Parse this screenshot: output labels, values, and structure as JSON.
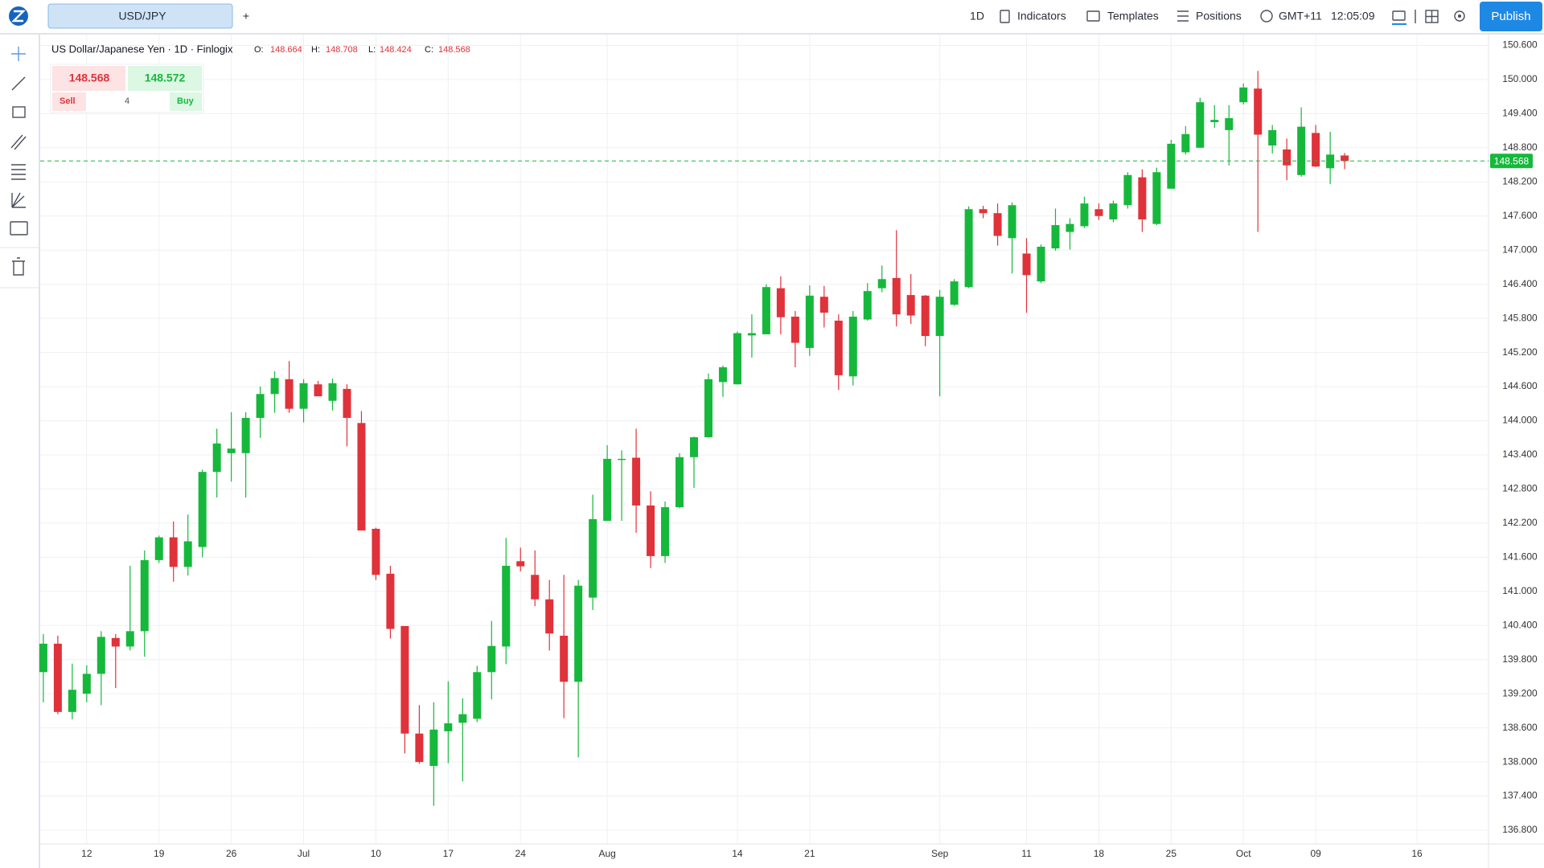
{
  "toolbar": {
    "symbol_tab": "USD/JPY",
    "add_tab": "+",
    "interval": "1D",
    "indicators": "Indicators",
    "templates": "Templates",
    "positions": "Positions",
    "timezone": "GMT+11",
    "clock": "12:05:09",
    "publish": "Publish"
  },
  "legend": {
    "title": "US Dollar/Japanese Yen · 1D · Finlogix",
    "open_label": "O:",
    "high_label": "H:",
    "low_label": "L:",
    "close_label": "C:"
  },
  "trade_panel": {
    "sell_price": "148.568",
    "buy_price": "148.572",
    "sell": "Sell",
    "buy": "Buy",
    "quantity": "4"
  },
  "chart_data": {
    "type": "candlestick",
    "up_color": "#16b83c",
    "down_color": "#e0323a",
    "grid": true,
    "x": [
      "06-07",
      "06-08",
      "06-09",
      "06-12",
      "06-13",
      "06-14",
      "06-15",
      "06-16",
      "06-19",
      "06-20",
      "06-21",
      "06-22",
      "06-23",
      "06-26",
      "06-27",
      "06-28",
      "06-29",
      "06-30",
      "07-03",
      "07-04",
      "07-05",
      "07-06",
      "07-07",
      "07-10",
      "07-11",
      "07-12",
      "07-13",
      "07-14",
      "07-17",
      "07-18",
      "07-19",
      "07-20",
      "07-21",
      "07-24",
      "07-25",
      "07-26",
      "07-27",
      "07-28",
      "07-31",
      "08-01",
      "08-02",
      "08-03",
      "08-04",
      "08-07",
      "08-08",
      "08-09",
      "08-10",
      "08-11",
      "08-14",
      "08-15",
      "08-16",
      "08-17",
      "08-18",
      "08-21",
      "08-22",
      "08-23",
      "08-24",
      "08-25",
      "08-28",
      "08-29",
      "08-30",
      "08-31",
      "09-01",
      "09-04",
      "09-05",
      "09-06",
      "09-07",
      "09-08",
      "09-11",
      "09-12",
      "09-13",
      "09-14",
      "09-15",
      "09-18",
      "09-19",
      "09-20",
      "09-21",
      "09-22",
      "09-25",
      "09-26",
      "09-27",
      "09-28",
      "09-29",
      "10-02",
      "10-03",
      "10-04",
      "10-05",
      "10-06",
      "10-09",
      "10-10",
      "10-11"
    ],
    "open": [
      139.58,
      140.08,
      138.88,
      139.2,
      139.55,
      140.18,
      140.03,
      140.3,
      141.55,
      141.95,
      141.43,
      141.78,
      143.1,
      143.43,
      143.43,
      144.05,
      144.47,
      144.73,
      144.21,
      144.64,
      144.35,
      144.56,
      143.96,
      142.1,
      141.31,
      140.39,
      138.5,
      137.93,
      138.54,
      138.69,
      138.76,
      139.58,
      140.03,
      141.53,
      141.29,
      140.86,
      140.22,
      139.41,
      140.89,
      142.24,
      143.31,
      143.35,
      142.51,
      141.62,
      142.48,
      143.36,
      143.71,
      144.68,
      144.64,
      145.5,
      145.52,
      146.33,
      145.83,
      145.28,
      146.18,
      145.76,
      144.78,
      145.78,
      146.33,
      146.51,
      146.21,
      146.2,
      145.49,
      146.04,
      146.35,
      147.72,
      147.65,
      147.21,
      146.94,
      146.45,
      147.03,
      147.32,
      147.42,
      147.72,
      147.54,
      147.79,
      148.28,
      147.46,
      148.08,
      148.72,
      148.8,
      149.25,
      149.11,
      149.6,
      149.84,
      148.84,
      148.77,
      148.32,
      149.06,
      148.44,
      148.664
    ],
    "high": [
      140.25,
      140.22,
      139.73,
      139.7,
      140.3,
      140.25,
      141.45,
      141.72,
      141.98,
      142.23,
      142.35,
      143.14,
      143.86,
      144.15,
      144.15,
      144.6,
      144.87,
      145.05,
      144.73,
      144.7,
      144.74,
      144.64,
      144.17,
      142.12,
      141.45,
      140.39,
      139.0,
      139.05,
      139.42,
      139.12,
      139.69,
      140.48,
      141.94,
      141.77,
      141.72,
      141.2,
      141.29,
      141.2,
      142.7,
      143.57,
      143.48,
      143.86,
      142.76,
      142.58,
      143.43,
      143.72,
      144.83,
      144.97,
      145.57,
      145.87,
      146.4,
      146.54,
      145.93,
      146.38,
      146.37,
      145.87,
      145.93,
      146.42,
      146.73,
      147.35,
      146.58,
      146.21,
      146.3,
      146.49,
      147.77,
      147.78,
      147.82,
      147.84,
      147.21,
      147.1,
      147.73,
      147.56,
      147.94,
      147.82,
      147.87,
      148.37,
      148.42,
      148.45,
      148.94,
      149.18,
      149.68,
      149.55,
      149.55,
      149.93,
      150.15,
      149.2,
      148.96,
      149.51,
      149.2,
      149.08,
      148.708
    ],
    "low": [
      139.05,
      138.84,
      138.75,
      139.05,
      139.0,
      139.3,
      139.96,
      139.85,
      141.5,
      141.17,
      141.28,
      141.6,
      142.65,
      142.93,
      142.65,
      143.7,
      144.14,
      144.14,
      143.97,
      144.43,
      144.18,
      143.55,
      142.07,
      141.2,
      140.17,
      138.15,
      137.97,
      137.23,
      137.98,
      137.66,
      138.7,
      139.1,
      139.72,
      141.35,
      140.74,
      139.96,
      138.77,
      138.08,
      140.67,
      142.24,
      142.24,
      142.03,
      141.41,
      141.5,
      142.46,
      142.82,
      143.7,
      144.42,
      144.64,
      145.11,
      145.52,
      145.52,
      144.94,
      145.14,
      145.64,
      144.54,
      144.62,
      145.76,
      146.26,
      145.66,
      145.7,
      145.31,
      144.43,
      146.02,
      146.33,
      147.56,
      147.08,
      146.59,
      145.9,
      146.42,
      146.99,
      147.01,
      147.39,
      147.53,
      147.49,
      147.73,
      147.32,
      147.44,
      148.08,
      148.68,
      148.8,
      149.15,
      148.49,
      149.56,
      147.32,
      148.7,
      148.23,
      148.29,
      148.46,
      148.16,
      148.424
    ],
    "close": [
      140.08,
      138.88,
      139.27,
      139.55,
      140.2,
      140.03,
      140.3,
      141.55,
      141.95,
      141.43,
      141.88,
      143.1,
      143.6,
      143.51,
      144.05,
      144.47,
      144.75,
      144.21,
      144.66,
      144.43,
      144.66,
      144.05,
      142.07,
      141.29,
      140.34,
      138.5,
      138.0,
      138.57,
      138.68,
      138.84,
      139.58,
      140.04,
      141.45,
      141.44,
      140.86,
      140.26,
      139.41,
      141.1,
      142.27,
      143.33,
      143.33,
      142.51,
      141.62,
      142.48,
      143.36,
      143.71,
      144.73,
      144.94,
      145.54,
      145.54,
      146.35,
      145.82,
      145.37,
      146.2,
      145.9,
      144.8,
      145.83,
      146.28,
      146.49,
      145.87,
      145.85,
      145.49,
      146.18,
      146.45,
      147.72,
      147.65,
      147.25,
      147.79,
      146.56,
      147.06,
      147.44,
      147.46,
      147.82,
      147.6,
      147.82,
      148.32,
      147.54,
      148.37,
      148.87,
      149.04,
      149.6,
      149.29,
      149.32,
      149.86,
      149.03,
      149.11,
      148.49,
      149.17,
      148.47,
      148.68,
      148.568
    ],
    "ylim": [
      136.56,
      150.79
    ],
    "yticks": [
      {
        "value": 150.6,
        "label": "150.600"
      },
      {
        "value": 150.0,
        "label": "150.000"
      },
      {
        "value": 149.4,
        "label": "149.400"
      },
      {
        "value": 148.8,
        "label": "148.800"
      },
      {
        "value": 148.2,
        "label": "148.200"
      },
      {
        "value": 147.6,
        "label": "147.600"
      },
      {
        "value": 147.0,
        "label": "147.000"
      },
      {
        "value": 146.4,
        "label": "146.400"
      },
      {
        "value": 145.8,
        "label": "145.800"
      },
      {
        "value": 145.2,
        "label": "145.200"
      },
      {
        "value": 144.6,
        "label": "144.600"
      },
      {
        "value": 144.0,
        "label": "144.000"
      },
      {
        "value": 143.4,
        "label": "143.400"
      },
      {
        "value": 142.8,
        "label": "142.800"
      },
      {
        "value": 142.2,
        "label": "142.200"
      },
      {
        "value": 141.6,
        "label": "141.600"
      },
      {
        "value": 141.0,
        "label": "141.000"
      },
      {
        "value": 140.4,
        "label": "140.400"
      },
      {
        "value": 139.8,
        "label": "139.800"
      },
      {
        "value": 139.2,
        "label": "139.200"
      },
      {
        "value": 138.6,
        "label": "138.600"
      },
      {
        "value": 138.0,
        "label": "138.000"
      },
      {
        "value": 137.4,
        "label": "137.400"
      },
      {
        "value": 136.8,
        "label": "136.800"
      }
    ],
    "xticks": [
      {
        "value": "06-12",
        "label": "12"
      },
      {
        "value": "06-19",
        "label": "19"
      },
      {
        "value": "06-26",
        "label": "26"
      },
      {
        "value": "07-03",
        "label": "Jul"
      },
      {
        "value": "07-10",
        "label": "10"
      },
      {
        "value": "07-17",
        "label": "17"
      },
      {
        "value": "07-24",
        "label": "24"
      },
      {
        "value": "08-01",
        "label": "Aug"
      },
      {
        "value": "08-14",
        "label": "14"
      },
      {
        "value": "08-21",
        "label": "21"
      },
      {
        "value": "09-01",
        "label": "Sep"
      },
      {
        "value": "09-11",
        "label": "11"
      },
      {
        "value": "09-18",
        "label": "18"
      },
      {
        "value": "09-25",
        "label": "25"
      },
      {
        "value": "10-02",
        "label": "Oct"
      },
      {
        "value": "10-09",
        "label": "09"
      },
      {
        "value": "10-16",
        "label": "16"
      }
    ]
  }
}
